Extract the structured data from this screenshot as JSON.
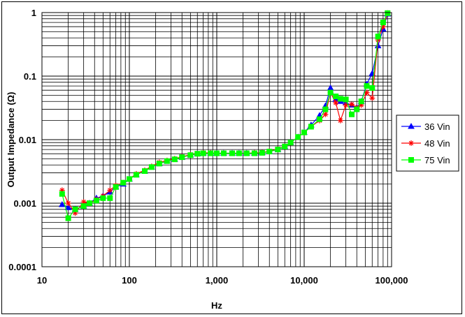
{
  "chart_data": {
    "type": "line",
    "title": "",
    "xlabel": "Hz",
    "ylabel": "Output Impedance (Ω)",
    "xscale": "log",
    "yscale": "log",
    "xlim": [
      10,
      100000
    ],
    "ylim": [
      0.0001,
      1
    ],
    "x_ticks": [
      10,
      100,
      1000,
      10000,
      100000
    ],
    "x_tick_labels": [
      "10",
      "100",
      "1,000",
      "10,000",
      "100,000"
    ],
    "y_ticks": [
      0.0001,
      0.001,
      0.01,
      0.1,
      1
    ],
    "y_tick_labels": [
      "0.0001",
      "0.001",
      "0.01",
      "0.1",
      "1"
    ],
    "grid": "major and minor (log decades)",
    "legend_position": "right",
    "series": [
      {
        "name": "36 Vin",
        "color": "#0000ff",
        "marker": "triangle",
        "x": [
          17,
          20,
          24,
          30,
          35,
          42,
          50,
          60,
          70,
          85,
          100,
          120,
          150,
          180,
          220,
          270,
          330,
          400,
          500,
          600,
          700,
          850,
          1000,
          1200,
          1500,
          1800,
          2200,
          2700,
          3300,
          4000,
          5000,
          6000,
          7000,
          8500,
          10000,
          12000,
          15000,
          17500,
          20000,
          23000,
          26000,
          30000,
          35000,
          40000,
          45000,
          52000,
          60000,
          70000,
          80000,
          90000
        ],
        "y": [
          0.00095,
          0.00085,
          0.0008,
          0.0009,
          0.001,
          0.0012,
          0.0013,
          0.0015,
          0.0018,
          0.002,
          0.0024,
          0.0028,
          0.0032,
          0.0037,
          0.0042,
          0.0046,
          0.0049,
          0.0053,
          0.0057,
          0.006,
          0.0061,
          0.0061,
          0.0061,
          0.0061,
          0.0061,
          0.0061,
          0.0061,
          0.0061,
          0.0062,
          0.0065,
          0.007,
          0.0078,
          0.009,
          0.011,
          0.013,
          0.017,
          0.024,
          0.034,
          0.065,
          0.043,
          0.04,
          0.038,
          0.035,
          0.032,
          0.04,
          0.075,
          0.11,
          0.3,
          0.55,
          0.95
        ]
      },
      {
        "name": "48 Vin",
        "color": "#ff0000",
        "marker": "star",
        "x": [
          17,
          20,
          24,
          30,
          35,
          42,
          50,
          60,
          70,
          85,
          100,
          120,
          150,
          180,
          220,
          270,
          330,
          400,
          500,
          600,
          700,
          850,
          1000,
          1200,
          1500,
          1800,
          2200,
          2700,
          3300,
          4000,
          5000,
          6000,
          7000,
          8500,
          10000,
          12000,
          15000,
          17500,
          20000,
          23000,
          26000,
          30000,
          35000,
          40000,
          45000,
          52000,
          60000,
          70000,
          80000,
          90000
        ],
        "y": [
          0.0016,
          0.001,
          0.0007,
          0.00105,
          0.001,
          0.00115,
          0.0013,
          0.0016,
          0.0019,
          0.0021,
          0.0024,
          0.0029,
          0.0033,
          0.0038,
          0.0044,
          0.0047,
          0.005,
          0.0054,
          0.0058,
          0.006,
          0.0062,
          0.0062,
          0.0061,
          0.0061,
          0.0061,
          0.0061,
          0.0061,
          0.0062,
          0.0063,
          0.0066,
          0.0071,
          0.0079,
          0.009,
          0.011,
          0.013,
          0.016,
          0.02,
          0.025,
          0.055,
          0.038,
          0.02,
          0.035,
          0.036,
          0.032,
          0.035,
          0.055,
          0.045,
          0.37,
          0.6,
          0.98
        ]
      },
      {
        "name": "75 Vin",
        "color": "#00ff00",
        "marker": "square",
        "x": [
          17,
          20,
          24,
          30,
          35,
          42,
          50,
          60,
          70,
          85,
          100,
          120,
          150,
          180,
          220,
          270,
          330,
          400,
          500,
          600,
          700,
          850,
          1000,
          1200,
          1500,
          1800,
          2200,
          2700,
          3300,
          4000,
          5000,
          6000,
          7000,
          8500,
          10000,
          12000,
          15000,
          17500,
          20000,
          23000,
          26000,
          30000,
          35000,
          40000,
          45000,
          52000,
          60000,
          70000,
          80000,
          90000
        ],
        "y": [
          0.0014,
          0.00058,
          0.0008,
          0.0009,
          0.001,
          0.0011,
          0.0012,
          0.0012,
          0.0018,
          0.0021,
          0.0024,
          0.0028,
          0.0032,
          0.0037,
          0.0042,
          0.0046,
          0.0049,
          0.0053,
          0.0057,
          0.006,
          0.0061,
          0.0061,
          0.0061,
          0.0061,
          0.0061,
          0.0061,
          0.0061,
          0.0061,
          0.0062,
          0.0065,
          0.007,
          0.0078,
          0.009,
          0.011,
          0.013,
          0.016,
          0.021,
          0.03,
          0.055,
          0.048,
          0.044,
          0.043,
          0.025,
          0.03,
          0.04,
          0.07,
          0.065,
          0.42,
          0.7,
          0.98
        ]
      }
    ]
  }
}
